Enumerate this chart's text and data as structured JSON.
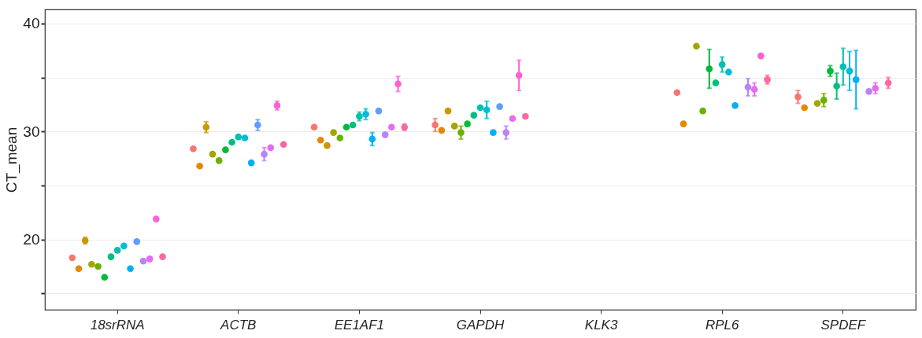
{
  "chart_data": {
    "type": "scatter",
    "ylabel": "CT_mean",
    "categories": [
      "18srRNA",
      "ACTB",
      "EE1AF1",
      "GAPDH",
      "KLK3",
      "RPL6",
      "SPDEF"
    ],
    "ylim": [
      13.5,
      41.3
    ],
    "yticks": [
      {
        "value": 15,
        "label": null
      },
      20,
      {
        "value": 25,
        "label": null
      },
      30,
      {
        "value": 35,
        "label": null
      },
      40
    ],
    "grid": "y",
    "series": [
      {
        "color": "#f8766d",
        "values": [
          18.3,
          28.4,
          30.4,
          30.6,
          null,
          33.6,
          33.2
        ],
        "errors": [
          null,
          null,
          null,
          0.6,
          null,
          null,
          0.6
        ]
      },
      {
        "color": "#e58700",
        "values": [
          17.3,
          26.8,
          29.2,
          30.1,
          null,
          30.7,
          32.2
        ],
        "errors": [
          null,
          null,
          null,
          null,
          null,
          null,
          null
        ]
      },
      {
        "color": "#c99800",
        "values": [
          19.9,
          30.4,
          28.7,
          31.9,
          null,
          null,
          null
        ],
        "errors": [
          0.3,
          0.5,
          null,
          null,
          null,
          null,
          null
        ]
      },
      {
        "color": "#a3a500",
        "values": [
          17.7,
          27.9,
          29.9,
          30.5,
          null,
          37.9,
          32.6
        ],
        "errors": [
          null,
          null,
          null,
          null,
          null,
          null,
          null
        ]
      },
      {
        "color": "#6bb100",
        "values": [
          17.5,
          27.3,
          29.4,
          29.9,
          null,
          31.9,
          32.9
        ],
        "errors": [
          null,
          null,
          null,
          0.6,
          null,
          null,
          0.6
        ]
      },
      {
        "color": "#00ba38",
        "values": [
          16.5,
          28.3,
          30.4,
          30.7,
          null,
          35.8,
          35.6
        ],
        "errors": [
          null,
          null,
          null,
          null,
          null,
          1.8,
          0.5
        ]
      },
      {
        "color": "#00bf7d",
        "values": [
          18.4,
          29.0,
          30.6,
          31.5,
          null,
          34.5,
          34.2
        ],
        "errors": [
          null,
          null,
          null,
          null,
          null,
          null,
          1.2
        ]
      },
      {
        "color": "#00c0af",
        "values": [
          19.0,
          29.5,
          31.4,
          32.2,
          null,
          36.2,
          36.0
        ],
        "errors": [
          null,
          null,
          0.4,
          null,
          null,
          0.7,
          1.7
        ]
      },
      {
        "color": "#00bcd8",
        "values": [
          19.4,
          29.4,
          31.6,
          32.0,
          null,
          35.5,
          35.6
        ],
        "errors": [
          null,
          null,
          0.5,
          0.8,
          null,
          null,
          1.8
        ]
      },
      {
        "color": "#00b0f6",
        "values": [
          17.3,
          27.1,
          29.3,
          29.9,
          null,
          32.4,
          34.8
        ],
        "errors": [
          null,
          null,
          0.6,
          null,
          null,
          null,
          2.7
        ]
      },
      {
        "color": "#619cff",
        "values": [
          19.8,
          30.6,
          31.9,
          32.3,
          null,
          null,
          null
        ],
        "errors": [
          null,
          0.5,
          null,
          null,
          null,
          null,
          null
        ]
      },
      {
        "color": "#b983ff",
        "values": [
          18.0,
          27.9,
          29.7,
          29.9,
          null,
          34.1,
          33.7
        ],
        "errors": [
          null,
          0.6,
          null,
          0.6,
          null,
          0.8,
          null
        ]
      },
      {
        "color": "#e76bf3",
        "values": [
          18.2,
          28.5,
          30.4,
          31.2,
          null,
          33.9,
          34.0
        ],
        "errors": [
          null,
          null,
          null,
          null,
          null,
          0.6,
          0.5
        ]
      },
      {
        "color": "#fd61d1",
        "values": [
          21.9,
          32.4,
          34.4,
          35.2,
          null,
          37.0,
          null
        ],
        "errors": [
          null,
          0.4,
          0.7,
          1.4,
          null,
          null,
          null
        ]
      },
      {
        "color": "#ff67a4",
        "values": [
          18.4,
          28.8,
          30.4,
          31.4,
          null,
          34.8,
          34.5
        ],
        "errors": [
          null,
          null,
          0.3,
          null,
          null,
          0.4,
          0.5
        ]
      }
    ]
  }
}
